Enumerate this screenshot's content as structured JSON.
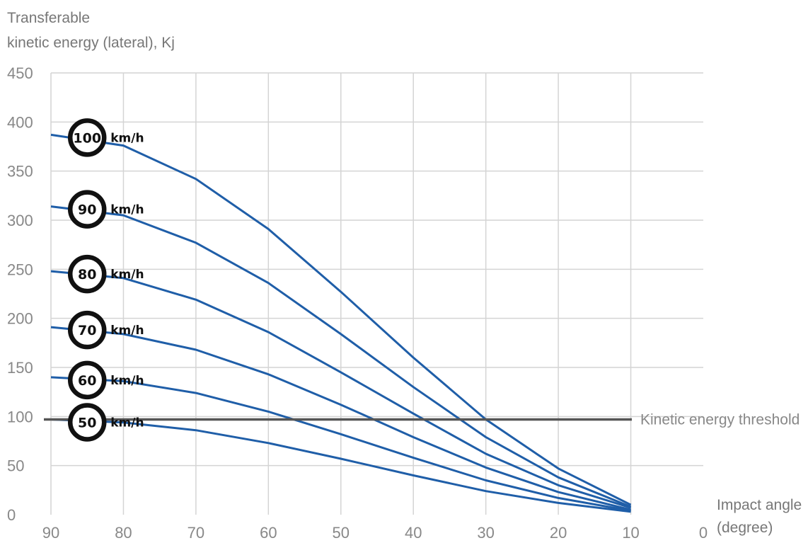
{
  "chart_data": {
    "type": "line",
    "ylabel_line1": "Transferable",
    "ylabel_line2": "kinetic energy (lateral), Kj",
    "xlabel_line1": "Impact angle",
    "xlabel_line2": "(degree)",
    "x_ticks": [
      90,
      80,
      70,
      60,
      50,
      40,
      30,
      20,
      10,
      0
    ],
    "y_ticks": [
      0,
      50,
      100,
      150,
      200,
      250,
      300,
      350,
      400,
      450
    ],
    "xlim": [
      90,
      0
    ],
    "ylim": [
      0,
      450
    ],
    "grid": true,
    "x": [
      90,
      80,
      70,
      60,
      50,
      40,
      30,
      20,
      10
    ],
    "series": [
      {
        "name": "100",
        "values": [
          387,
          376,
          342,
          291,
          227,
          160,
          97,
          47,
          10
        ]
      },
      {
        "name": "90",
        "values": [
          314,
          305,
          277,
          236,
          184,
          130,
          79,
          38,
          8
        ]
      },
      {
        "name": "80",
        "values": [
          248,
          241,
          219,
          186,
          145,
          103,
          62,
          30,
          7
        ]
      },
      {
        "name": "70",
        "values": [
          191,
          184,
          168,
          143,
          112,
          79,
          48,
          23,
          5
        ]
      },
      {
        "name": "60",
        "values": [
          140,
          136,
          124,
          105,
          82,
          58,
          35,
          17,
          4
        ]
      },
      {
        "name": "50",
        "values": [
          97,
          94,
          86,
          73,
          57,
          40,
          24,
          12,
          3
        ]
      }
    ],
    "speed_unit": "km/h",
    "threshold": {
      "label": "Kinetic energy threshold",
      "value": 97
    },
    "colors": {
      "series": "#1f5ea8",
      "threshold": "#555555",
      "grid": "#d4d4d4"
    }
  }
}
